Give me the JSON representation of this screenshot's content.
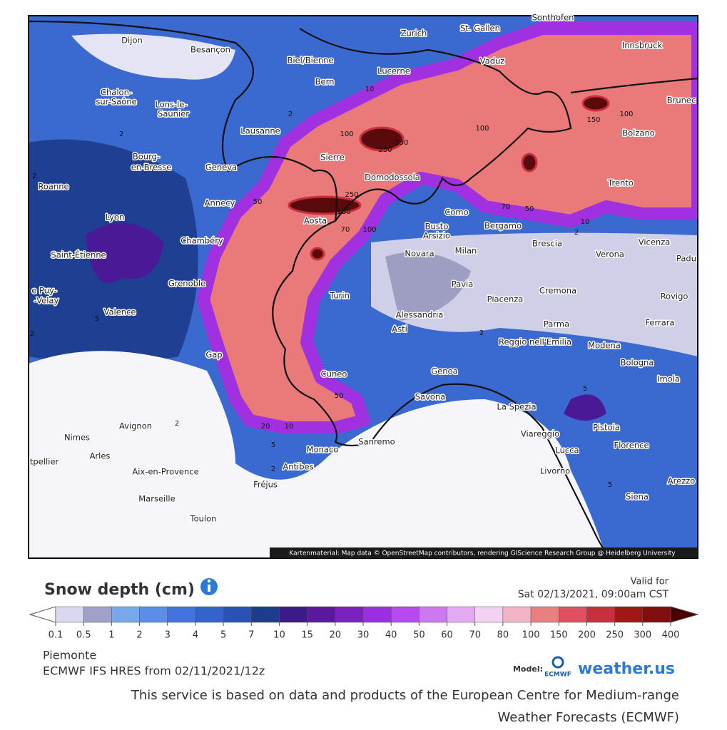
{
  "map": {
    "cities": [
      "Dijon",
      "Besançon",
      "Zurich",
      "St. Gallen",
      "Sonthofen",
      "Innsbruck",
      "Biel/Bienne",
      "Vaduz",
      "Lucerne",
      "Bern",
      "Chalon-",
      "sur-Saône",
      "Lons-le-",
      "Saunier",
      "Brunec",
      "Lausanne",
      "Sierre",
      "Domodossola",
      "Bolzano",
      "Bourg-",
      "en-Bresse",
      "Geneva",
      "Roanne",
      "Trento",
      "Annecy",
      "Lyon",
      "Aosta",
      "Como",
      "Bergamo",
      "Busto",
      "Arsizio",
      "Chambéry",
      "Milan",
      "Brescia",
      "Verona",
      "Vicenza",
      "Padu",
      "Saint-Étienne",
      "Novara",
      "Grenoble",
      "Pavia",
      "Cremona",
      "Rovigo",
      "e Puy-",
      "-Velay",
      "Turin",
      "Piacenza",
      "Valence",
      "Alessandria",
      "Ferrara",
      "Parma",
      "Asti",
      "Reggio nell'Emilia",
      "Modena",
      "Gap",
      "Bologna",
      "Imola",
      "Cuneo",
      "Genoa",
      "Savona",
      "La Spezia",
      "Pistoia",
      "Avignon",
      "Nimes",
      "Arles",
      "Viareggio",
      "Monaco",
      "Sanremo",
      "Lucca",
      "Florence",
      "tpellier",
      "Antibes",
      "Aix-en-Provence",
      "Livorno",
      "Fréjus",
      "Arezzo",
      "Siena",
      "Marseille",
      "Toulon"
    ],
    "contour_labels": [
      2,
      100,
      250,
      150,
      100,
      150,
      100,
      50,
      250,
      150,
      70,
      100,
      70,
      50,
      10,
      2,
      5,
      2,
      5,
      50,
      20,
      10,
      5,
      2,
      2,
      5,
      2,
      2,
      2,
      10
    ],
    "attribution": "Kartenmaterial: Map data © OpenStreetMap contributors, rendering GIScience Research Group @ Heidelberg University"
  },
  "legend": {
    "title": "Snow depth (cm)",
    "valid_label": "Valid for",
    "valid_time": "Sat 02/13/2021, 09:00am CST",
    "ticks": [
      0.1,
      0.5,
      1,
      2,
      3,
      4,
      5,
      7,
      10,
      15,
      20,
      30,
      40,
      50,
      60,
      70,
      80,
      100,
      150,
      200,
      250,
      300,
      400
    ],
    "under_color": "#ffffff",
    "colors": [
      "#d8d8f0",
      "#a0a0c8",
      "#78a8ec",
      "#5c8ee8",
      "#4274e0",
      "#3563cc",
      "#2a52b4",
      "#1f3c8c",
      "#3c1a8a",
      "#5a1a9e",
      "#7a22c0",
      "#9a2ee0",
      "#b848f0",
      "#cc78f2",
      "#e2aaf2",
      "#f2d2f2",
      "#f0b4c4",
      "#e88080",
      "#e05060",
      "#c83040",
      "#a01818",
      "#801010"
    ],
    "over_color": "#4a0000"
  },
  "footer": {
    "region": "Piemonte",
    "model_run": "ECMWF IFS HRES from 02/11/2021/12z",
    "model_label": "Model:",
    "logo_ecmwf": "ECMWF",
    "logo_brand": "weather.us",
    "credit_line1": "This service is based on data and products of the European Centre for Medium-range",
    "credit_line2": "Weather Forecasts (ECMWF)"
  }
}
